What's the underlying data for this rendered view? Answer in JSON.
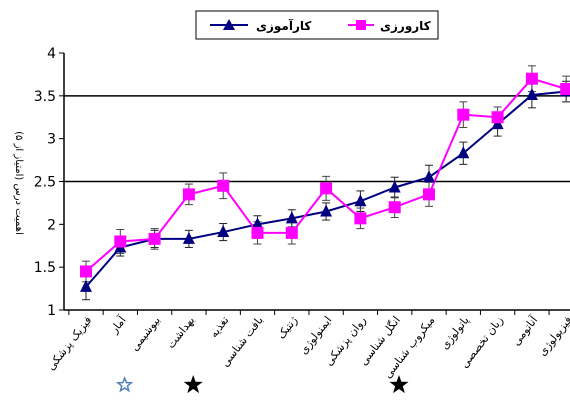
{
  "chart_data": {
    "type": "line",
    "ylabel": "اهمیت درس (امتیاز از ۵)",
    "ylim": [
      1,
      4
    ],
    "yticks": [
      "1",
      "1.5",
      "2",
      "2.5",
      "3",
      "3.5",
      "4"
    ],
    "grid": "horizontal at 2.5 and 3.5",
    "legend": "top-right",
    "categories": [
      "فیزیک پزشکی",
      "آمار",
      "بیوشیمی",
      "بهداشت",
      "تغذیه",
      "بافت شناسی",
      "ژنتیک",
      "ایمنولوژی",
      "روان پزشکی",
      "انگل شناسی",
      "میکروب شناسی",
      "پاتولوژی",
      "زبان تخصصی",
      "آناتومی",
      "فیزیولوژی"
    ],
    "starred": [
      {
        "category": "بیوشیمی",
        "style": "outline",
        "color": "#4f81bd"
      },
      {
        "category": "تغذیه",
        "style": "filled",
        "color": "#000000"
      },
      {
        "category": "میکروب شناسی",
        "style": "filled",
        "color": "#000000"
      }
    ],
    "series": [
      {
        "name": "کارآموزی",
        "color": "#000080",
        "marker": "triangle",
        "values": [
          1.27,
          1.73,
          1.83,
          1.83,
          1.91,
          2.0,
          2.07,
          2.15,
          2.27,
          2.43,
          2.55,
          2.83,
          3.17,
          3.51,
          3.55
        ],
        "errors": [
          0.15,
          0.1,
          0.1,
          0.1,
          0.1,
          0.1,
          0.1,
          0.1,
          0.12,
          0.12,
          0.14,
          0.13,
          0.14,
          0.15,
          0.12
        ]
      },
      {
        "name": "کارورزی",
        "color": "#ff00ff",
        "marker": "square",
        "values": [
          1.45,
          1.8,
          1.83,
          2.35,
          2.45,
          1.9,
          1.9,
          2.42,
          2.07,
          2.2,
          2.35,
          3.28,
          3.25,
          3.7,
          3.58
        ],
        "errors": [
          0.12,
          0.14,
          0.12,
          0.12,
          0.15,
          0.13,
          0.13,
          0.14,
          0.12,
          0.12,
          0.14,
          0.15,
          0.12,
          0.15,
          0.15
        ]
      }
    ]
  }
}
